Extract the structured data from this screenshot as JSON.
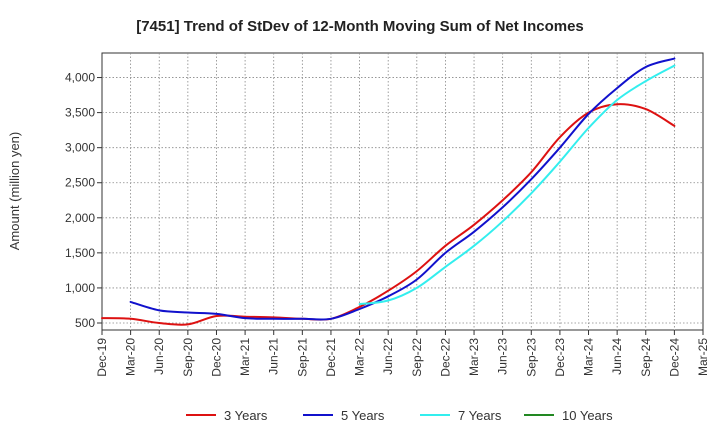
{
  "chart_data": {
    "type": "line",
    "title": "[7451]  Trend of StDev of 12-Month Moving Sum of Net Incomes",
    "xlabel": "",
    "ylabel": "Amount (million yen)",
    "ylim": [
      400,
      4350
    ],
    "yticks": [
      500,
      1000,
      1500,
      2000,
      2500,
      3000,
      3500,
      4000
    ],
    "ytick_labels": [
      "500",
      "1,000",
      "1,500",
      "2,000",
      "2,500",
      "3,000",
      "3,500",
      "4,000"
    ],
    "xticks": [
      "Dec-19",
      "Mar-20",
      "Jun-20",
      "Sep-20",
      "Dec-20",
      "Mar-21",
      "Jun-21",
      "Sep-21",
      "Dec-21",
      "Mar-22",
      "Jun-22",
      "Sep-22",
      "Dec-22",
      "Mar-23",
      "Jun-23",
      "Sep-23",
      "Dec-23",
      "Mar-24",
      "Jun-24",
      "Sep-24",
      "Dec-24",
      "Mar-25"
    ],
    "grid": true,
    "legend_position": "bottom",
    "series": [
      {
        "name": "3 Years",
        "color": "#dd1111",
        "points": [
          [
            "Dec-19",
            570
          ],
          [
            "Mar-20",
            560
          ],
          [
            "Jun-20",
            500
          ],
          [
            "Sep-20",
            480
          ],
          [
            "Dec-20",
            600
          ],
          [
            "Mar-21",
            590
          ],
          [
            "Jun-21",
            580
          ],
          [
            "Sep-21",
            560
          ],
          [
            "Dec-21",
            560
          ],
          [
            "Mar-22",
            730
          ],
          [
            "Jun-22",
            960
          ],
          [
            "Sep-22",
            1240
          ],
          [
            "Dec-22",
            1600
          ],
          [
            "Mar-23",
            1900
          ],
          [
            "Jun-23",
            2250
          ],
          [
            "Sep-23",
            2650
          ],
          [
            "Dec-23",
            3150
          ],
          [
            "Mar-24",
            3500
          ],
          [
            "Jun-24",
            3620
          ],
          [
            "Sep-24",
            3550
          ],
          [
            "Dec-24",
            3310
          ]
        ]
      },
      {
        "name": "5 Years",
        "color": "#1111cc",
        "points": [
          [
            "Mar-20",
            800
          ],
          [
            "Jun-20",
            680
          ],
          [
            "Sep-20",
            650
          ],
          [
            "Dec-20",
            630
          ],
          [
            "Mar-21",
            570
          ],
          [
            "Jun-21",
            560
          ],
          [
            "Sep-21",
            560
          ],
          [
            "Dec-21",
            560
          ],
          [
            "Mar-22",
            700
          ],
          [
            "Jun-22",
            880
          ],
          [
            "Sep-22",
            1120
          ],
          [
            "Dec-22",
            1500
          ],
          [
            "Mar-23",
            1800
          ],
          [
            "Jun-23",
            2150
          ],
          [
            "Sep-23",
            2550
          ],
          [
            "Dec-23",
            3000
          ],
          [
            "Mar-24",
            3480
          ],
          [
            "Jun-24",
            3850
          ],
          [
            "Sep-24",
            4150
          ],
          [
            "Dec-24",
            4270
          ]
        ]
      },
      {
        "name": "7 Years",
        "color": "#33eeee",
        "points": [
          [
            "Mar-22",
            770
          ],
          [
            "Jun-22",
            820
          ],
          [
            "Sep-22",
            1000
          ],
          [
            "Dec-22",
            1300
          ],
          [
            "Mar-23",
            1600
          ],
          [
            "Jun-23",
            1950
          ],
          [
            "Sep-23",
            2350
          ],
          [
            "Dec-23",
            2800
          ],
          [
            "Mar-24",
            3280
          ],
          [
            "Jun-24",
            3680
          ],
          [
            "Sep-24",
            3950
          ],
          [
            "Dec-24",
            4170
          ]
        ]
      },
      {
        "name": "10 Years",
        "color": "#228822",
        "points": []
      }
    ]
  }
}
